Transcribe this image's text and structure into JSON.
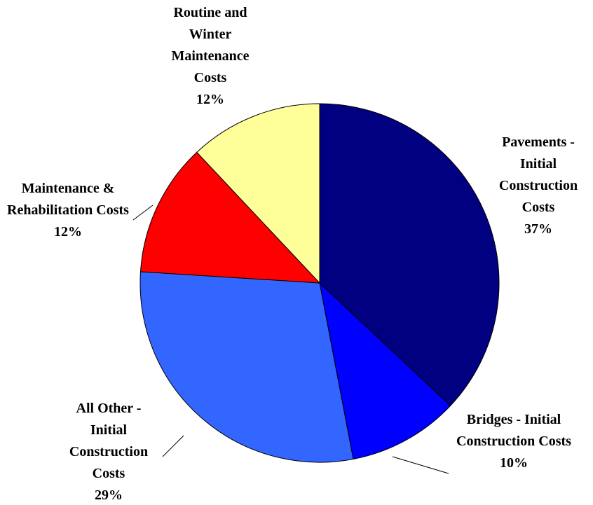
{
  "chart_data": {
    "type": "pie",
    "categories": [
      "Pavements - Initial Construction Costs",
      "Bridges - Initial Construction Costs",
      "All Other - Initial Construction Costs",
      "Maintenance & Rehabilitation Costs",
      "Routine and Winter Maintenance Costs"
    ],
    "values": [
      37,
      10,
      29,
      12,
      12
    ],
    "value_labels": [
      "37%",
      "10%",
      "29%",
      "12%",
      "12%"
    ],
    "colors": [
      "#000080",
      "#0000ff",
      "#3366ff",
      "#ff0000",
      "#ffff99"
    ]
  }
}
